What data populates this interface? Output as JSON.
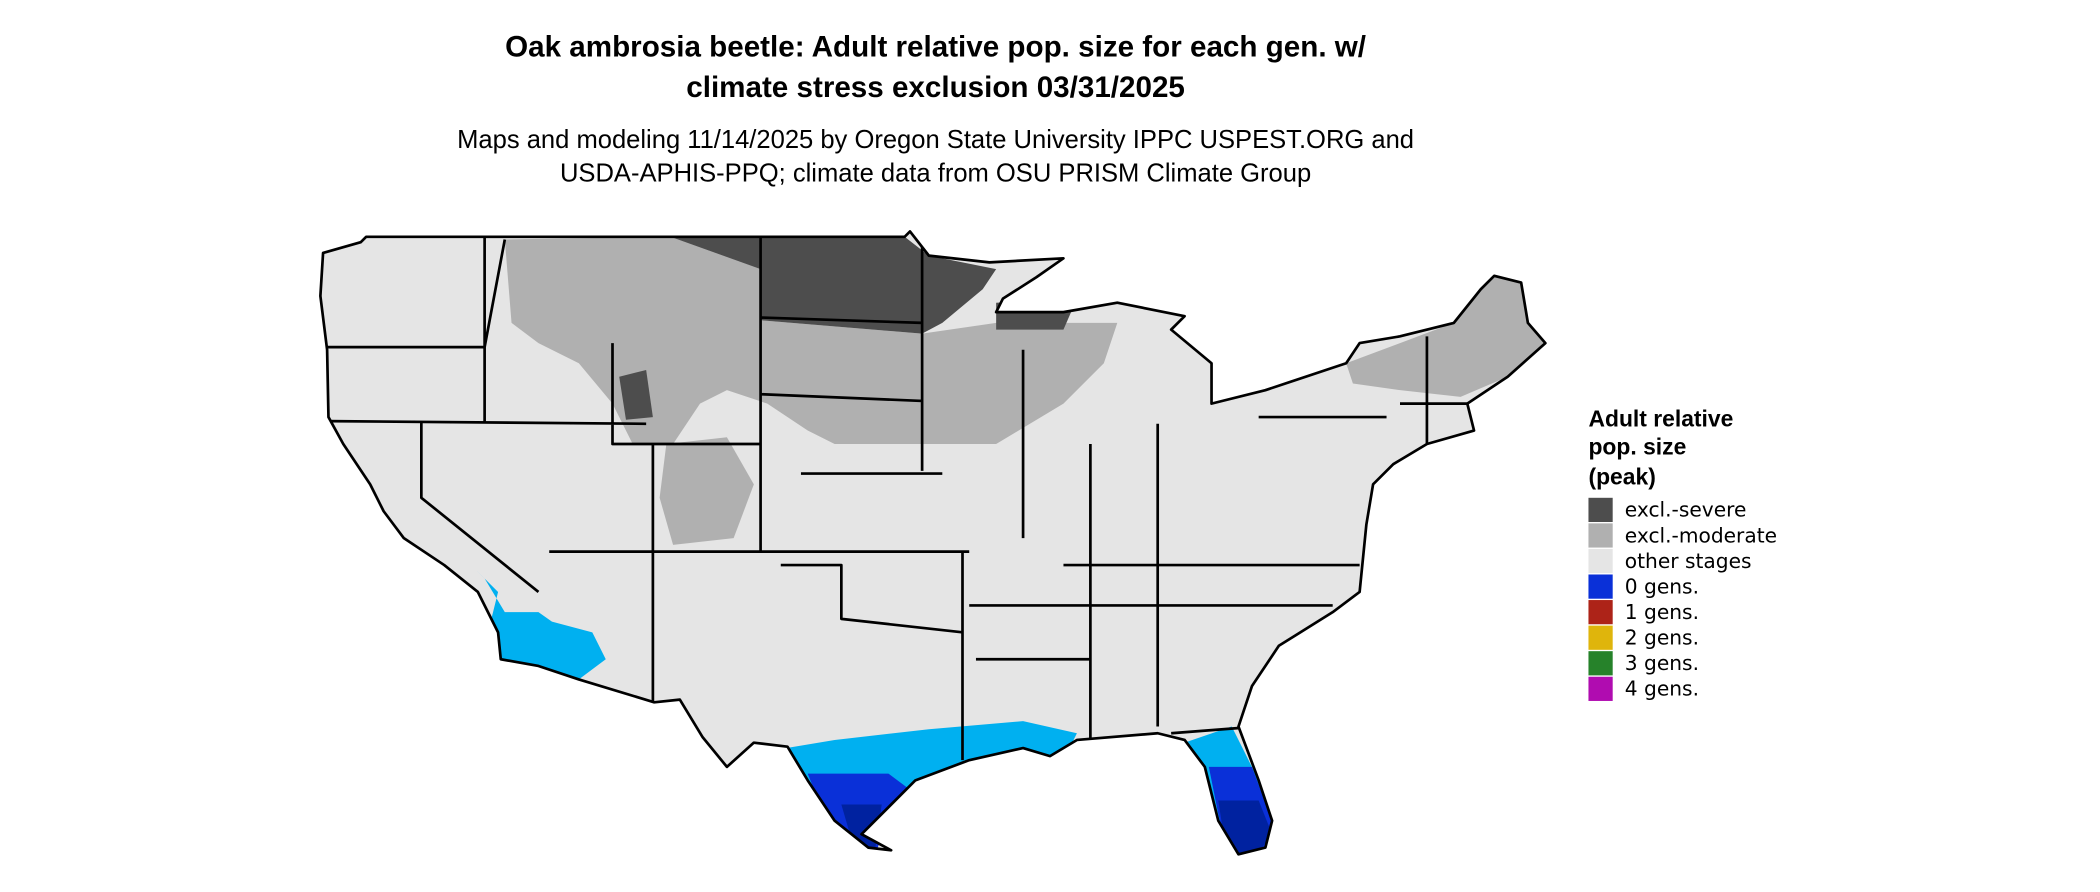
{
  "title_lines": [
    "Oak ambrosia beetle: Adult relative pop. size for each gen. w/",
    "climate stress exclusion 03/31/2025"
  ],
  "subtitle_lines": [
    "Maps and modeling 11/14/2025 by Oregon State University IPPC USPEST.ORG and",
    "USDA-APHIS-PPQ; climate data from OSU PRISM Climate Group"
  ],
  "legend": {
    "title_lines": [
      "Adult relative",
      "pop. size",
      "(peak)"
    ],
    "items": [
      {
        "label": "excl.-severe",
        "color": "#4d4d4d"
      },
      {
        "label": "excl.-moderate",
        "color": "#b0b0b0"
      },
      {
        "label": "other stages",
        "color": "#e5e5e5"
      },
      {
        "label": "0 gens.",
        "color": "#0a30d8"
      },
      {
        "label": "1 gens.",
        "color": "#ad2318"
      },
      {
        "label": "2 gens.",
        "color": "#dfb50c"
      },
      {
        "label": "3 gens.",
        "color": "#26822a"
      },
      {
        "label": "4 gens.",
        "color": "#b00cb0"
      }
    ]
  }
}
